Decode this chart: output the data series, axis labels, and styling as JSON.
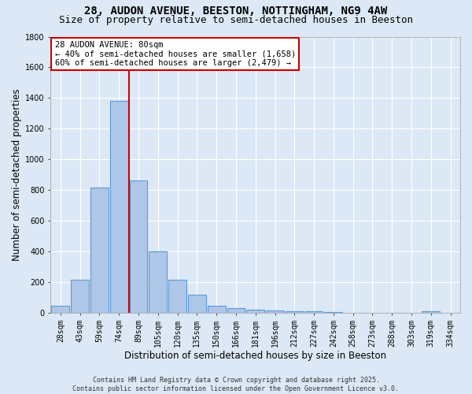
{
  "title_line1": "28, AUDON AVENUE, BEESTON, NOTTINGHAM, NG9 4AW",
  "title_line2": "Size of property relative to semi-detached houses in Beeston",
  "xlabel": "Distribution of semi-detached houses by size in Beeston",
  "ylabel": "Number of semi-detached properties",
  "categories": [
    "28sqm",
    "43sqm",
    "59sqm",
    "74sqm",
    "89sqm",
    "105sqm",
    "120sqm",
    "135sqm",
    "150sqm",
    "166sqm",
    "181sqm",
    "196sqm",
    "212sqm",
    "227sqm",
    "242sqm",
    "258sqm",
    "273sqm",
    "288sqm",
    "303sqm",
    "319sqm",
    "334sqm"
  ],
  "values": [
    50,
    220,
    820,
    1380,
    865,
    400,
    220,
    120,
    50,
    35,
    25,
    20,
    15,
    10,
    5,
    3,
    2,
    0,
    0,
    12,
    0
  ],
  "bar_color": "#aec6e8",
  "bar_edgecolor": "#5b9bd5",
  "property_line_idx": 4,
  "property_line_color": "#cc0000",
  "annotation_box_text": "28 AUDON AVENUE: 80sqm\n← 40% of semi-detached houses are smaller (1,658)\n60% of semi-detached houses are larger (2,479) →",
  "ylim": [
    0,
    1800
  ],
  "background_color": "#dce8f5",
  "grid_color": "#ffffff",
  "footer_line1": "Contains HM Land Registry data © Crown copyright and database right 2025.",
  "footer_line2": "Contains public sector information licensed under the Open Government Licence v3.0.",
  "title_fontsize": 10,
  "subtitle_fontsize": 9,
  "axis_label_fontsize": 8.5,
  "tick_fontsize": 7,
  "annotation_fontsize": 7.5,
  "footer_fontsize": 6
}
